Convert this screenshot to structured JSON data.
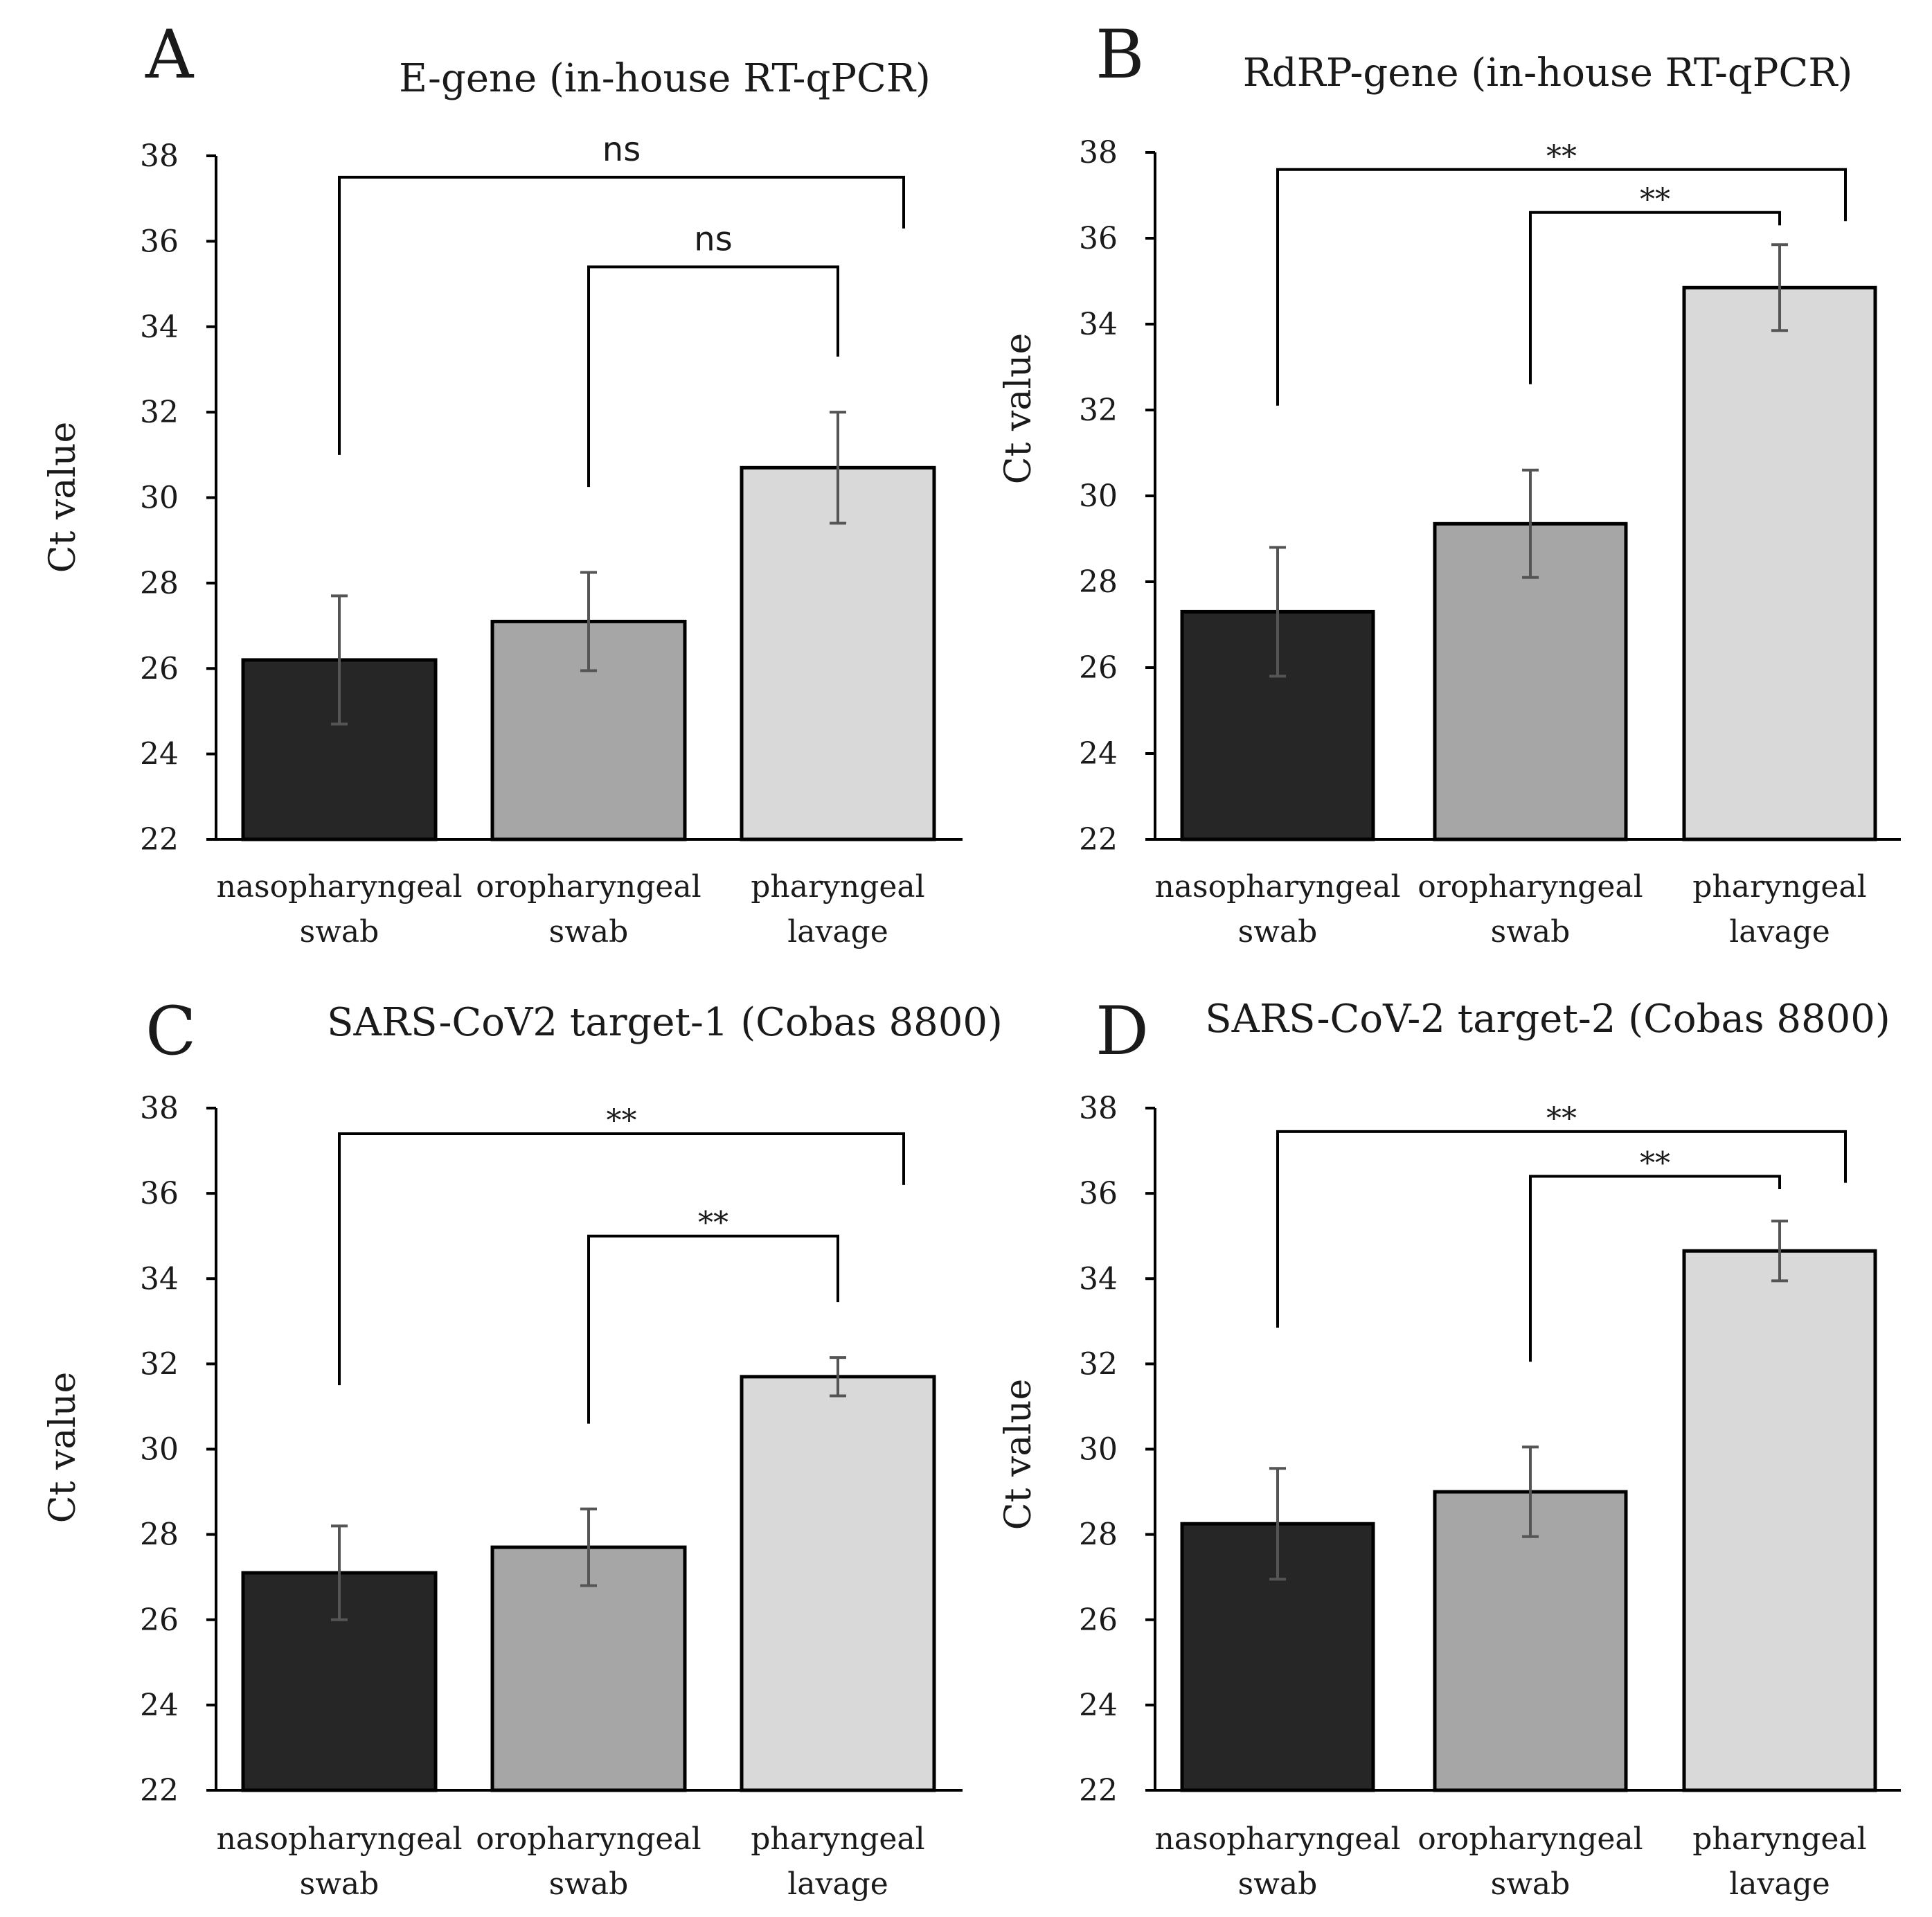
{
  "bar_colors": [
    "#262626",
    "#a6a6a6",
    "#d9d9d9"
  ],
  "chart_data": [
    {
      "type": "bar",
      "letter": "A",
      "title": "E-gene (in-house RT-qPCR)",
      "ylabel": "Ct value",
      "xlabel": "",
      "ylim": [
        22,
        38
      ],
      "yticks": [
        22,
        24,
        26,
        28,
        30,
        32,
        34,
        36,
        38
      ],
      "categories": [
        [
          "nasopharyngeal",
          "swab"
        ],
        [
          "oropharyngeal",
          "swab"
        ],
        [
          "pharyngeal",
          "lavage"
        ]
      ],
      "values": [
        26.2,
        27.1,
        30.7
      ],
      "errors": [
        1.5,
        1.15,
        1.3
      ],
      "significance": [
        {
          "from": 0,
          "to": 2,
          "label": "ns",
          "level": 37.5
        },
        {
          "from": 1,
          "to": 2,
          "label": "ns",
          "level": 35.4
        }
      ]
    },
    {
      "type": "bar",
      "letter": "B",
      "title": "RdRP-gene (in-house RT-qPCR)",
      "ylabel": "Ct value",
      "xlabel": "",
      "ylim": [
        22,
        38
      ],
      "yticks": [
        22,
        24,
        26,
        28,
        30,
        32,
        34,
        36,
        38
      ],
      "categories": [
        [
          "nasopharyngeal",
          "swab"
        ],
        [
          "oropharyngeal",
          "swab"
        ],
        [
          "pharyngeal",
          "lavage"
        ]
      ],
      "values": [
        27.3,
        29.35,
        34.85
      ],
      "errors": [
        1.5,
        1.25,
        1.0
      ],
      "significance": [
        {
          "from": 0,
          "to": 2,
          "label": "**",
          "level": 37.6
        },
        {
          "from": 1,
          "to": 2,
          "label": "**",
          "level": 36.6
        }
      ]
    },
    {
      "type": "bar",
      "letter": "C",
      "title": "SARS-CoV2 target-1 (Cobas 8800)",
      "ylabel": "Ct value",
      "xlabel": "",
      "ylim": [
        22,
        38
      ],
      "yticks": [
        22,
        24,
        26,
        28,
        30,
        32,
        34,
        36,
        38
      ],
      "categories": [
        [
          "nasopharyngeal",
          "swab"
        ],
        [
          "oropharyngeal",
          "swab"
        ],
        [
          "pharyngeal",
          "lavage"
        ]
      ],
      "values": [
        27.1,
        27.7,
        31.7
      ],
      "errors": [
        1.1,
        0.9,
        0.45
      ],
      "significance": [
        {
          "from": 0,
          "to": 2,
          "label": "**",
          "level": 37.4
        },
        {
          "from": 1,
          "to": 2,
          "label": "**",
          "level": 35.0
        }
      ]
    },
    {
      "type": "bar",
      "letter": "D",
      "title": "SARS-CoV-2 target-2 (Cobas 8800)",
      "ylabel": "Ct value",
      "xlabel": "",
      "ylim": [
        22,
        38
      ],
      "yticks": [
        22,
        24,
        26,
        28,
        30,
        32,
        34,
        36,
        38
      ],
      "categories": [
        [
          "nasopharyngeal",
          "swab"
        ],
        [
          "oropharyngeal",
          "swab"
        ],
        [
          "pharyngeal",
          "lavage"
        ]
      ],
      "values": [
        28.25,
        29.0,
        34.65
      ],
      "errors": [
        1.3,
        1.05,
        0.7
      ],
      "significance": [
        {
          "from": 0,
          "to": 2,
          "label": "**",
          "level": 37.45
        },
        {
          "from": 1,
          "to": 2,
          "label": "**",
          "level": 36.4
        }
      ]
    }
  ]
}
